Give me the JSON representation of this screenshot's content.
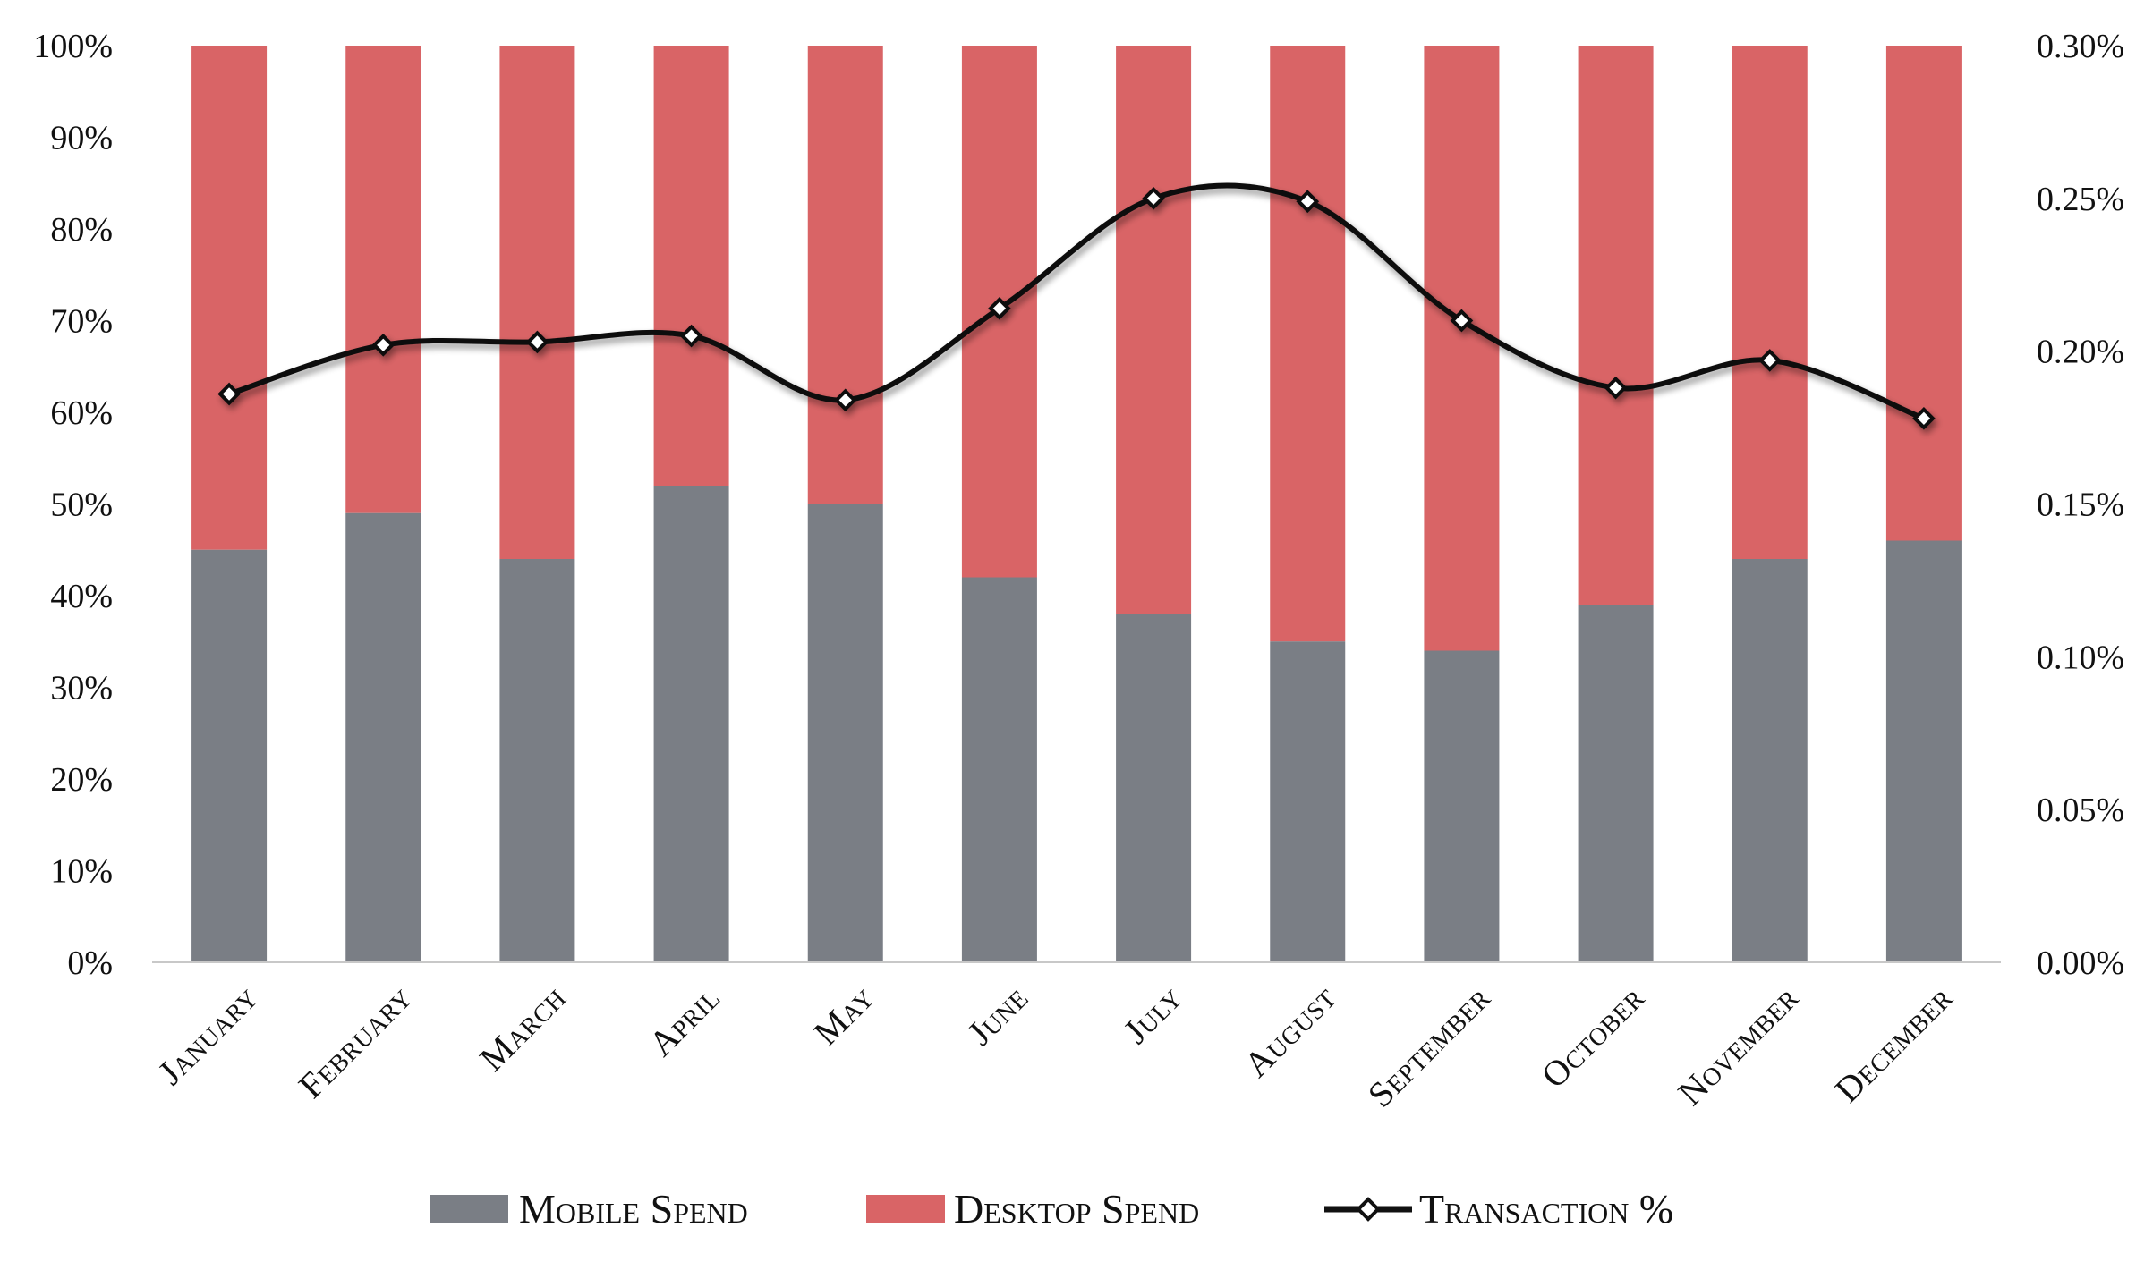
{
  "chart_data": {
    "type": "bar",
    "stacked": true,
    "percent_stacked": true,
    "categories": [
      "January",
      "February",
      "March",
      "April",
      "May",
      "June",
      "July",
      "August",
      "September",
      "October",
      "November",
      "December"
    ],
    "series": [
      {
        "name": "Mobile Spend",
        "type": "bar",
        "axis": "left",
        "color": "#7a7e85",
        "values": [
          45,
          49,
          44,
          52,
          50,
          42,
          38,
          35,
          34,
          39,
          44,
          46
        ]
      },
      {
        "name": "Desktop Spend",
        "type": "bar",
        "axis": "left",
        "color": "#d96466",
        "values": [
          55,
          51,
          56,
          48,
          50,
          58,
          62,
          65,
          66,
          61,
          56,
          54
        ]
      },
      {
        "name": "Transaction %",
        "type": "line",
        "axis": "right",
        "color": "#111111",
        "smooth": true,
        "marker": "diamond",
        "values": [
          0.186,
          0.202,
          0.203,
          0.205,
          0.184,
          0.214,
          0.25,
          0.249,
          0.21,
          0.188,
          0.197,
          0.178
        ]
      }
    ],
    "left_axis": {
      "ylim": [
        0,
        100
      ],
      "ticks": [
        "0%",
        "10%",
        "20%",
        "30%",
        "40%",
        "50%",
        "60%",
        "70%",
        "80%",
        "90%",
        "100%"
      ]
    },
    "right_axis": {
      "ylim": [
        0,
        0.3
      ],
      "ticks": [
        "0.00%",
        "0.05%",
        "0.10%",
        "0.15%",
        "0.20%",
        "0.25%",
        "0.30%"
      ]
    },
    "grid": false,
    "legend_position": "bottom"
  }
}
